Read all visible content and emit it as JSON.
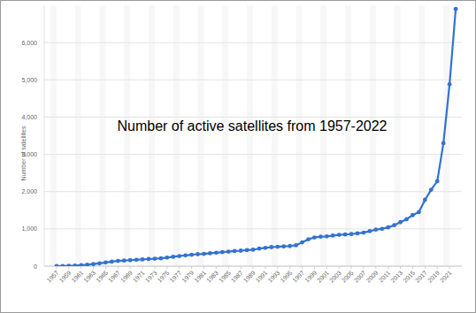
{
  "chart_data": {
    "type": "line",
    "title": "Number of active satellites from 1957-2022",
    "ylabel": "Number of satellites",
    "x": [
      1957,
      1958,
      1959,
      1960,
      1961,
      1962,
      1963,
      1964,
      1965,
      1966,
      1967,
      1968,
      1969,
      1970,
      1971,
      1972,
      1973,
      1974,
      1975,
      1976,
      1977,
      1978,
      1979,
      1980,
      1981,
      1982,
      1983,
      1984,
      1985,
      1986,
      1987,
      1988,
      1989,
      1990,
      1991,
      1992,
      1993,
      1994,
      1995,
      1996,
      1997,
      1998,
      1999,
      2000,
      2001,
      2002,
      2003,
      2004,
      2005,
      2006,
      2007,
      2008,
      2009,
      2010,
      2011,
      2012,
      2013,
      2014,
      2015,
      2016,
      2017,
      2018,
      2019,
      2020,
      2021,
      2022
    ],
    "values": [
      2,
      5,
      10,
      15,
      25,
      40,
      55,
      75,
      100,
      120,
      140,
      150,
      160,
      170,
      180,
      190,
      200,
      210,
      230,
      250,
      270,
      290,
      305,
      320,
      330,
      345,
      360,
      375,
      390,
      405,
      415,
      430,
      440,
      470,
      490,
      510,
      520,
      530,
      540,
      560,
      640,
      720,
      770,
      790,
      800,
      820,
      840,
      850,
      860,
      880,
      900,
      940,
      980,
      1000,
      1040,
      1100,
      1180,
      1260,
      1370,
      1450,
      1780,
      2050,
      2280,
      3300,
      4880,
      6900
    ],
    "color": "#3373cf",
    "marker": "circle",
    "xlim": [
      1955,
      2023
    ],
    "xticks": [
      1957,
      1959,
      1961,
      1963,
      1965,
      1967,
      1969,
      1971,
      1973,
      1975,
      1977,
      1979,
      1981,
      1983,
      1985,
      1987,
      1989,
      1991,
      1993,
      1995,
      1997,
      1999,
      2001,
      2003,
      2005,
      2007,
      2009,
      2011,
      2013,
      2015,
      2017,
      2019,
      2021
    ],
    "ylim": [
      0,
      7000
    ],
    "yticks": [
      0,
      {
        "value": 1000,
        "label": "1,000"
      },
      {
        "value": 2000,
        "label": "2,000"
      },
      {
        "value": 3000,
        "label": "3,000"
      },
      {
        "value": 4000,
        "label": "4,000"
      },
      {
        "value": 5000,
        "label": "5,000"
      },
      {
        "value": 6000,
        "label": "6,000"
      }
    ],
    "grid": true
  }
}
